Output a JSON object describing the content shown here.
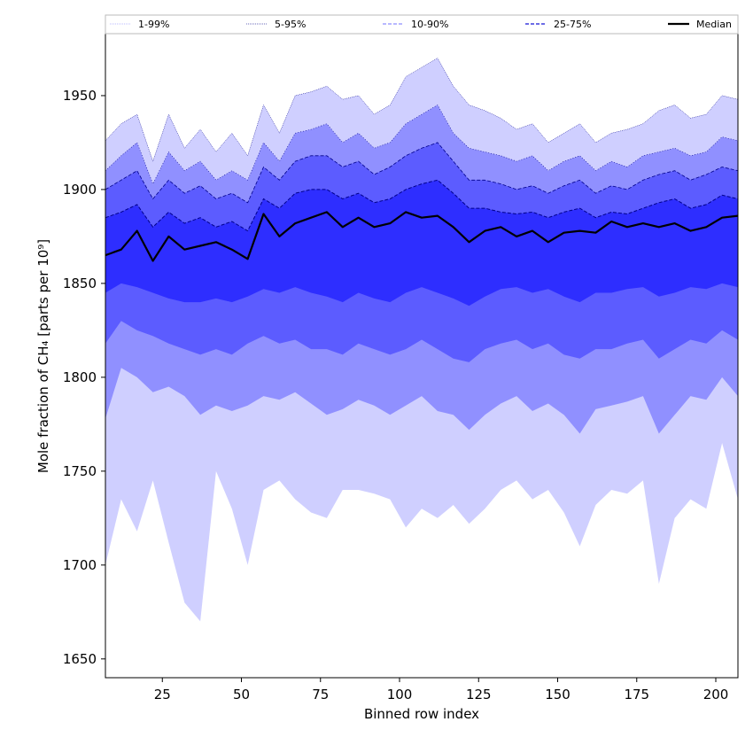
{
  "chart_data": {
    "type": "area",
    "title": "",
    "xlabel": "Binned row index",
    "ylabel": "Mole fraction of CH₄ [parts per 10⁹]",
    "xlim": [
      7,
      207
    ],
    "ylim": [
      1640,
      1983
    ],
    "x_ticks": [
      25,
      50,
      75,
      100,
      125,
      150,
      175,
      200
    ],
    "y_ticks": [
      1650,
      1700,
      1750,
      1800,
      1850,
      1900,
      1950
    ],
    "grid": false,
    "legend_position": "top",
    "colors": {
      "band_1_99": "#cfcfff",
      "band_5_95": "#9090ff",
      "band_10_90": "#5c5cff",
      "band_25_75": "#2e2eff",
      "median": "#000000",
      "edge": "#00008b"
    },
    "legend": [
      {
        "label": "1-99%",
        "style": "dotted-light"
      },
      {
        "label": "5-95%",
        "style": "dotted-dark"
      },
      {
        "label": "10-90%",
        "style": "dashed-light"
      },
      {
        "label": "25-75%",
        "style": "dashed-dark"
      },
      {
        "label": "Median",
        "style": "solid-black"
      }
    ],
    "x": [
      7,
      12,
      17,
      22,
      27,
      32,
      37,
      42,
      47,
      52,
      57,
      62,
      67,
      72,
      77,
      82,
      87,
      92,
      97,
      102,
      107,
      112,
      117,
      122,
      127,
      132,
      137,
      142,
      147,
      152,
      157,
      162,
      167,
      172,
      177,
      182,
      187,
      192,
      197,
      202,
      207
    ],
    "series": [
      {
        "name": "1-99%",
        "lower": [
          1700,
          1735,
          1718,
          1745,
          1712,
          1680,
          1670,
          1750,
          1730,
          1700,
          1740,
          1745,
          1735,
          1728,
          1725,
          1740,
          1740,
          1738,
          1735,
          1720,
          1730,
          1725,
          1732,
          1722,
          1730,
          1740,
          1745,
          1735,
          1740,
          1728,
          1710,
          1732,
          1740,
          1738,
          1745,
          1690,
          1725,
          1735,
          1730,
          1765,
          1735
        ],
        "upper": [
          1926,
          1935,
          1940,
          1915,
          1940,
          1922,
          1932,
          1920,
          1930,
          1918,
          1945,
          1930,
          1950,
          1952,
          1955,
          1948,
          1950,
          1940,
          1945,
          1960,
          1965,
          1970,
          1955,
          1945,
          1942,
          1938,
          1932,
          1935,
          1925,
          1930,
          1935,
          1925,
          1930,
          1932,
          1935,
          1942,
          1945,
          1938,
          1940,
          1950,
          1948
        ]
      },
      {
        "name": "5-95%",
        "lower": [
          1778,
          1805,
          1800,
          1792,
          1795,
          1790,
          1780,
          1785,
          1782,
          1785,
          1790,
          1788,
          1792,
          1786,
          1780,
          1783,
          1788,
          1785,
          1780,
          1785,
          1790,
          1782,
          1780,
          1772,
          1780,
          1786,
          1790,
          1782,
          1786,
          1780,
          1770,
          1783,
          1785,
          1787,
          1790,
          1770,
          1780,
          1790,
          1788,
          1800,
          1790
        ],
        "upper": [
          1910,
          1918,
          1925,
          1903,
          1920,
          1910,
          1915,
          1905,
          1910,
          1905,
          1925,
          1915,
          1930,
          1932,
          1935,
          1925,
          1930,
          1922,
          1925,
          1935,
          1940,
          1945,
          1930,
          1922,
          1920,
          1918,
          1915,
          1918,
          1910,
          1915,
          1918,
          1910,
          1915,
          1912,
          1918,
          1920,
          1922,
          1918,
          1920,
          1928,
          1926
        ]
      },
      {
        "name": "10-90%",
        "lower": [
          1818,
          1830,
          1825,
          1822,
          1818,
          1815,
          1812,
          1815,
          1812,
          1818,
          1822,
          1818,
          1820,
          1815,
          1815,
          1812,
          1818,
          1815,
          1812,
          1815,
          1820,
          1815,
          1810,
          1808,
          1815,
          1818,
          1820,
          1815,
          1818,
          1812,
          1810,
          1815,
          1815,
          1818,
          1820,
          1810,
          1815,
          1820,
          1818,
          1825,
          1820
        ],
        "upper": [
          1900,
          1905,
          1910,
          1895,
          1905,
          1898,
          1902,
          1895,
          1898,
          1893,
          1912,
          1905,
          1915,
          1918,
          1918,
          1912,
          1915,
          1908,
          1912,
          1918,
          1922,
          1925,
          1915,
          1905,
          1905,
          1903,
          1900,
          1902,
          1898,
          1902,
          1905,
          1898,
          1902,
          1900,
          1905,
          1908,
          1910,
          1905,
          1908,
          1912,
          1910
        ]
      },
      {
        "name": "25-75%",
        "lower": [
          1845,
          1850,
          1848,
          1845,
          1842,
          1840,
          1840,
          1842,
          1840,
          1843,
          1847,
          1845,
          1848,
          1845,
          1843,
          1840,
          1845,
          1842,
          1840,
          1845,
          1848,
          1845,
          1842,
          1838,
          1843,
          1847,
          1848,
          1845,
          1847,
          1843,
          1840,
          1845,
          1845,
          1847,
          1848,
          1843,
          1845,
          1848,
          1847,
          1850,
          1848
        ],
        "upper": [
          1885,
          1888,
          1892,
          1880,
          1888,
          1882,
          1885,
          1880,
          1883,
          1878,
          1895,
          1890,
          1898,
          1900,
          1900,
          1895,
          1898,
          1893,
          1895,
          1900,
          1903,
          1905,
          1898,
          1890,
          1890,
          1888,
          1887,
          1888,
          1885,
          1888,
          1890,
          1885,
          1888,
          1887,
          1890,
          1893,
          1895,
          1890,
          1892,
          1897,
          1895
        ]
      },
      {
        "name": "Median",
        "values": [
          1865,
          1868,
          1878,
          1862,
          1875,
          1868,
          1870,
          1872,
          1868,
          1863,
          1887,
          1875,
          1882,
          1885,
          1888,
          1880,
          1885,
          1880,
          1882,
          1888,
          1885,
          1886,
          1880,
          1872,
          1878,
          1880,
          1875,
          1878,
          1872,
          1877,
          1878,
          1877,
          1883,
          1880,
          1882,
          1880,
          1882,
          1878,
          1880,
          1885,
          1886
        ]
      }
    ]
  }
}
